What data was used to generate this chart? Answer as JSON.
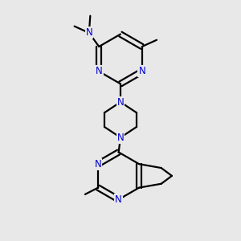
{
  "bg_color": "#e8e8e8",
  "bond_color": "#000000",
  "atom_color": "#0000cc",
  "line_width": 1.6,
  "font_size": 8.5,
  "figsize": [
    3.0,
    3.0
  ],
  "dpi": 100,
  "xlim": [
    0,
    10
  ],
  "ylim": [
    0,
    10
  ]
}
